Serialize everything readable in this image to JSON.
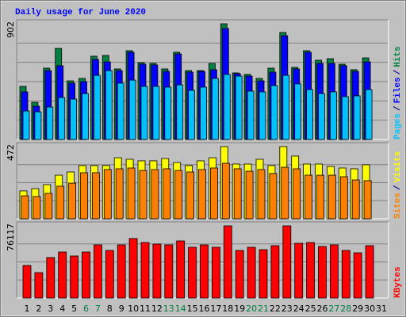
{
  "title": "Daily usage for June 2020",
  "highlight_days": [
    "6",
    "7",
    "13",
    "14",
    "20",
    "21",
    "27",
    "28"
  ],
  "highlight_color": "#008040",
  "legend_separator": "/",
  "chart_data": [
    {
      "type": "bar",
      "categories": [
        "1",
        "2",
        "3",
        "4",
        "5",
        "6",
        "7",
        "8",
        "9",
        "10",
        "11",
        "12",
        "13",
        "14",
        "15",
        "16",
        "17",
        "18",
        "19",
        "20",
        "21",
        "22",
        "23",
        "24",
        "25",
        "26",
        "27",
        "28",
        "29",
        "30",
        "31"
      ],
      "ylim": [
        0,
        902
      ],
      "yticks": [
        902
      ],
      "series": [
        {
          "name": "Pages",
          "color": "#00c0ff",
          "values": [
            222,
            216,
            253,
            327,
            315,
            358,
            500,
            537,
            439,
            463,
            414,
            414,
            408,
            426,
            383,
            408,
            476,
            507,
            494,
            377,
            371,
            420,
            500,
            433,
            389,
            358,
            371,
            334,
            340,
            389,
            null
          ]
        },
        {
          "name": "Files",
          "color": "#0000ff",
          "values": [
            371,
            259,
            537,
            575,
            439,
            451,
            624,
            605,
            537,
            680,
            587,
            581,
            531,
            667,
            525,
            531,
            544,
            865,
            513,
            494,
            457,
            525,
            809,
            550,
            680,
            593,
            593,
            575,
            531,
            605,
            null
          ]
        },
        {
          "name": "Hits",
          "color": "#008040",
          "values": [
            414,
            290,
            556,
            710,
            457,
            476,
            649,
            655,
            550,
            692,
            599,
            593,
            550,
            680,
            537,
            537,
            593,
            902,
            519,
            507,
            476,
            556,
            834,
            562,
            692,
            618,
            630,
            587,
            544,
            636,
            null
          ]
        }
      ]
    },
    {
      "type": "bar",
      "categories": [
        "1",
        "2",
        "3",
        "4",
        "5",
        "6",
        "7",
        "8",
        "9",
        "10",
        "11",
        "12",
        "13",
        "14",
        "15",
        "16",
        "17",
        "18",
        "19",
        "20",
        "21",
        "22",
        "23",
        "24",
        "25",
        "26",
        "27",
        "28",
        "29",
        "30",
        "31"
      ],
      "ylim": [
        0,
        472
      ],
      "yticks": [
        472
      ],
      "series": [
        {
          "name": "Sites",
          "color": "#ff8000",
          "values": [
            150,
            145,
            166,
            213,
            233,
            301,
            301,
            322,
            327,
            332,
            316,
            322,
            327,
            316,
            306,
            322,
            332,
            363,
            327,
            311,
            322,
            296,
            337,
            327,
            285,
            285,
            285,
            275,
            254,
            249,
            null
          ]
        },
        {
          "name": "Visits",
          "color": "#ffff00",
          "values": [
            182,
            197,
            223,
            285,
            306,
            348,
            348,
            348,
            399,
            389,
            379,
            379,
            394,
            368,
            348,
            379,
            399,
            472,
            358,
            358,
            389,
            348,
            472,
            410,
            358,
            358,
            342,
            332,
            327,
            353,
            null
          ]
        }
      ]
    },
    {
      "type": "bar",
      "categories": [
        "1",
        "2",
        "3",
        "4",
        "5",
        "6",
        "7",
        "8",
        "9",
        "10",
        "11",
        "12",
        "13",
        "14",
        "15",
        "16",
        "17",
        "18",
        "19",
        "20",
        "21",
        "22",
        "23",
        "24",
        "25",
        "26",
        "27",
        "28",
        "29",
        "30",
        "31"
      ],
      "ylim": [
        0,
        76117
      ],
      "yticks": [
        76117
      ],
      "series": [
        {
          "name": "KBytes",
          "color": "#ff0000",
          "values": [
            34295,
            26767,
            42663,
            48518,
            44336,
            48518,
            56047,
            50192,
            56047,
            62739,
            58556,
            56884,
            56047,
            60229,
            53538,
            56047,
            53538,
            76117,
            50192,
            53538,
            51028,
            55211,
            76117,
            57720,
            58556,
            54374,
            56047,
            50192,
            47681,
            55211,
            null
          ]
        }
      ]
    }
  ]
}
